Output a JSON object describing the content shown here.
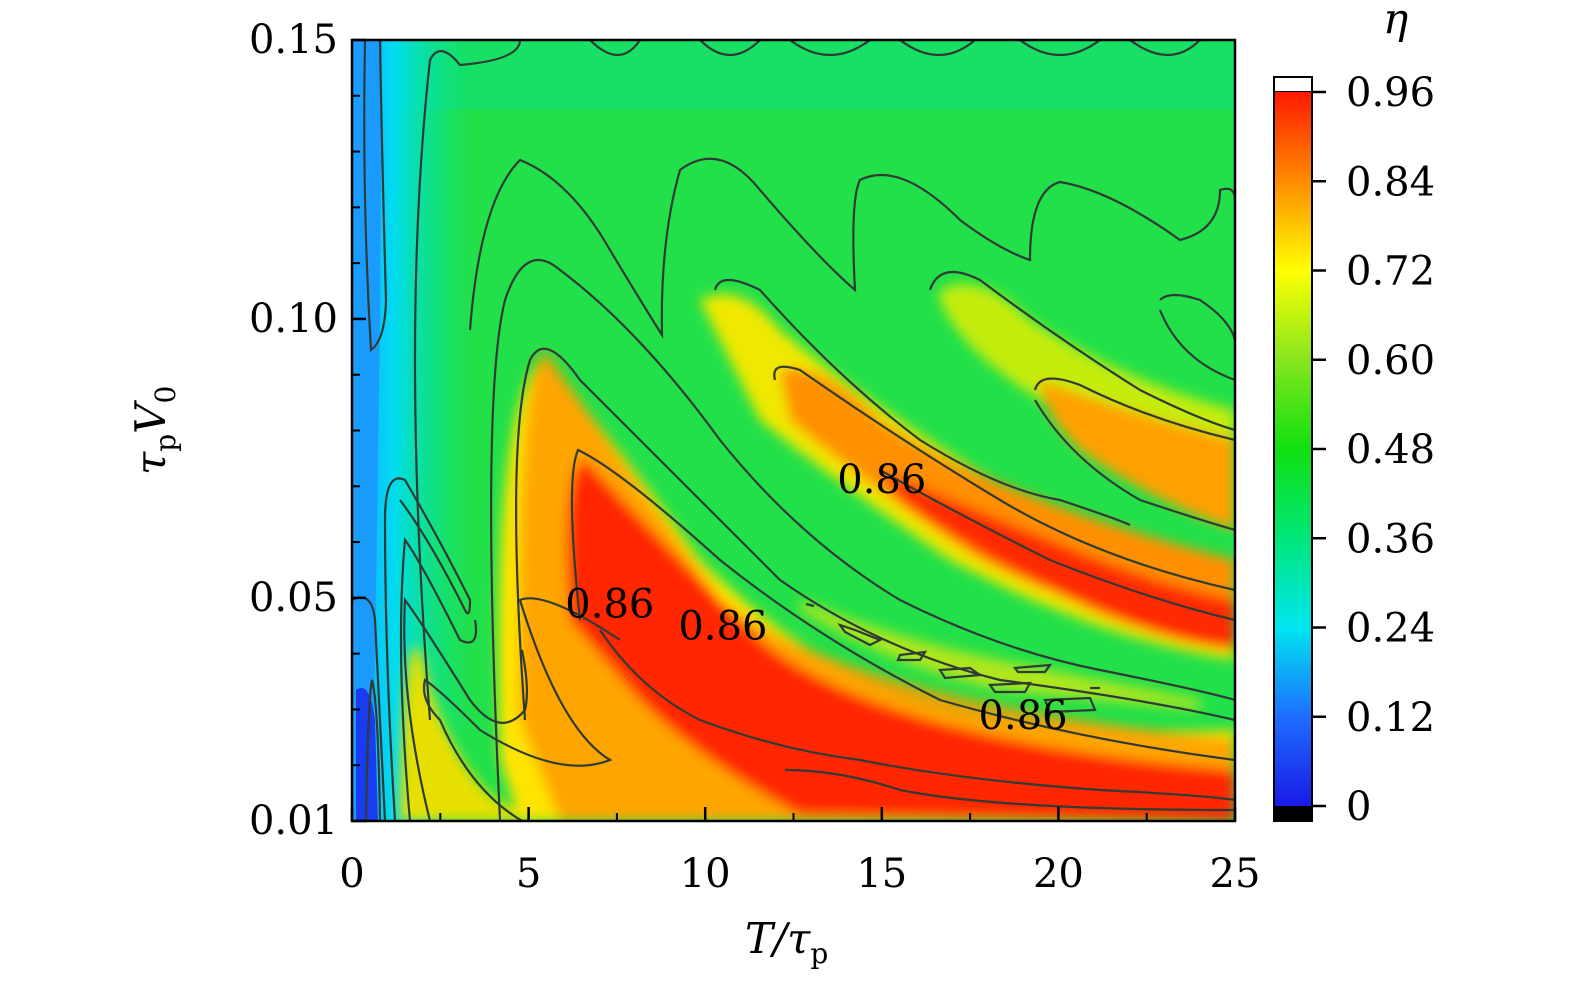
{
  "chart_data": {
    "type": "heatmap",
    "title": "",
    "xlabel": "T/τ",
    "xlabel_sub": "p",
    "ylabel": "τ V",
    "ylabel_sub_p": "p",
    "ylabel_sub_0": "0",
    "xlim": [
      0,
      25
    ],
    "ylim": [
      0.01,
      0.15
    ],
    "x_ticks": [
      0,
      5,
      10,
      15,
      20,
      25
    ],
    "x_tick_labels": [
      "0",
      "5",
      "10",
      "15",
      "20",
      "25"
    ],
    "y_ticks": [
      0.01,
      0.05,
      0.1,
      0.15
    ],
    "y_tick_labels": [
      "0.01",
      "0.05",
      "0.10",
      "0.15"
    ],
    "colorbar": {
      "label": "η",
      "range": [
        0,
        0.96
      ],
      "ticks": [
        0,
        0.12,
        0.24,
        0.36,
        0.48,
        0.6,
        0.72,
        0.84,
        0.96
      ],
      "tick_labels": [
        "0",
        "0.12",
        "0.24",
        "0.36",
        "0.48",
        "0.60",
        "0.72",
        "0.84",
        "0.96"
      ],
      "colors": [
        "#000000",
        "#0a1ee6",
        "#1e8cff",
        "#00e6e6",
        "#00e68c",
        "#1ee61e",
        "#8ce61e",
        "#ffff00",
        "#ff9600",
        "#ff1e00",
        "#ffffff"
      ]
    },
    "contour_labels": [
      {
        "text": "0.86",
        "x": 15.0,
        "y": 0.0688
      },
      {
        "text": "0.86",
        "x": 7.3,
        "y": 0.0465
      },
      {
        "text": "0.86",
        "x": 10.5,
        "y": 0.0425
      },
      {
        "text": "0.86",
        "x": 19.0,
        "y": 0.0265
      }
    ],
    "grid": false,
    "legend": "colorbar-right"
  }
}
